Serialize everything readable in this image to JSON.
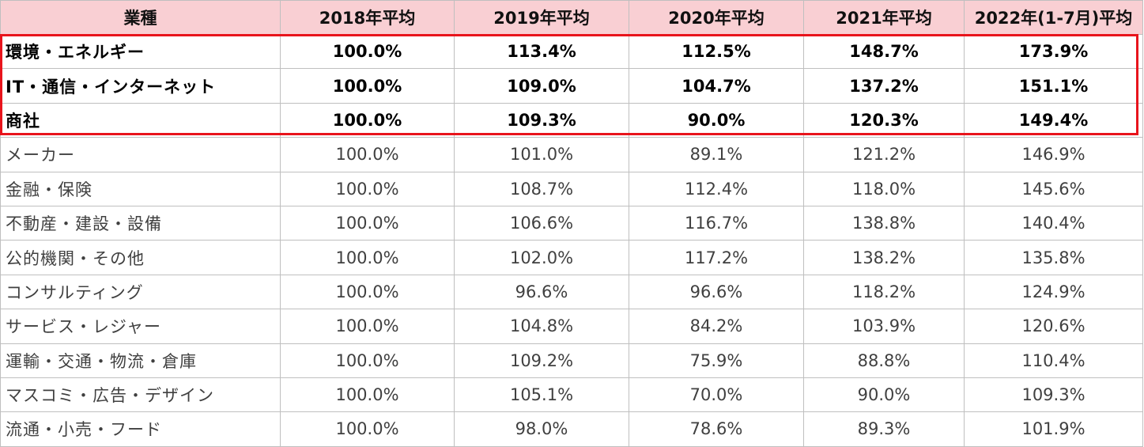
{
  "chart_data": {
    "type": "table",
    "columns": [
      "業種",
      "2018年平均",
      "2019年平均",
      "2020年平均",
      "2021年平均",
      "2022年(1-7月)平均"
    ],
    "rows": [
      {
        "name": "環境・エネルギー",
        "values": [
          "100.0%",
          "113.4%",
          "112.5%",
          "148.7%",
          "173.9%"
        ],
        "highlight": true
      },
      {
        "name": "IT・通信・インターネット",
        "values": [
          "100.0%",
          "109.0%",
          "104.7%",
          "137.2%",
          "151.1%"
        ],
        "highlight": true
      },
      {
        "name": "商社",
        "values": [
          "100.0%",
          "109.3%",
          "90.0%",
          "120.3%",
          "149.4%"
        ],
        "highlight": true
      },
      {
        "name": "メーカー",
        "values": [
          "100.0%",
          "101.0%",
          "89.1%",
          "121.2%",
          "146.9%"
        ],
        "highlight": false
      },
      {
        "name": "金融・保険",
        "values": [
          "100.0%",
          "108.7%",
          "112.4%",
          "118.0%",
          "145.6%"
        ],
        "highlight": false
      },
      {
        "name": "不動産・建設・設備",
        "values": [
          "100.0%",
          "106.6%",
          "116.7%",
          "138.8%",
          "140.4%"
        ],
        "highlight": false
      },
      {
        "name": "公的機関・その他",
        "values": [
          "100.0%",
          "102.0%",
          "117.2%",
          "138.2%",
          "135.8%"
        ],
        "highlight": false
      },
      {
        "name": "コンサルティング",
        "values": [
          "100.0%",
          "96.6%",
          "96.6%",
          "118.2%",
          "124.9%"
        ],
        "highlight": false
      },
      {
        "name": "サービス・レジャー",
        "values": [
          "100.0%",
          "104.8%",
          "84.2%",
          "103.9%",
          "120.6%"
        ],
        "highlight": false
      },
      {
        "name": "運輸・交通・物流・倉庫",
        "values": [
          "100.0%",
          "109.2%",
          "75.9%",
          "88.8%",
          "110.4%"
        ],
        "highlight": false
      },
      {
        "name": "マスコミ・広告・デザイン",
        "values": [
          "100.0%",
          "105.1%",
          "70.0%",
          "90.0%",
          "109.3%"
        ],
        "highlight": false
      },
      {
        "name": "流通・小売・フード",
        "values": [
          "100.0%",
          "98.0%",
          "78.6%",
          "89.3%",
          "101.9%"
        ],
        "highlight": false
      }
    ]
  },
  "colors": {
    "header_bg": "#f9cfd3",
    "highlight_border": "#e8141c",
    "grid": "#bfbfbf"
  }
}
